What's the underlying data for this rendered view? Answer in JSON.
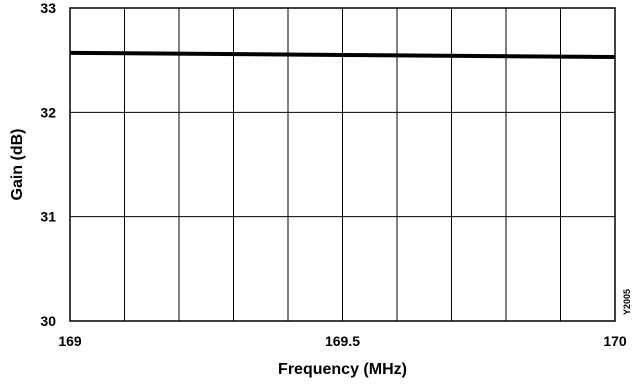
{
  "chart_data": {
    "type": "line",
    "title": "",
    "xlabel": "Frequency (MHz)",
    "ylabel": "Gain (dB)",
    "xlim": [
      169,
      170
    ],
    "ylim": [
      30,
      33
    ],
    "x_ticks": [
      {
        "value": 169,
        "label": "169"
      },
      {
        "value": 169.5,
        "label": "169.5"
      },
      {
        "value": 170,
        "label": "170"
      }
    ],
    "y_ticks": [
      {
        "value": 30,
        "label": "30"
      },
      {
        "value": 31,
        "label": "31"
      },
      {
        "value": 32,
        "label": "32"
      },
      {
        "value": 33,
        "label": "33"
      }
    ],
    "x_grid_step": 0.1,
    "y_grid_step": 1,
    "grid": true,
    "series": [
      {
        "color": "#000000",
        "x": [
          169,
          169.5,
          170
        ],
        "y": [
          32.57,
          32.55,
          32.53
        ]
      }
    ],
    "figure_code": "Y2005"
  }
}
